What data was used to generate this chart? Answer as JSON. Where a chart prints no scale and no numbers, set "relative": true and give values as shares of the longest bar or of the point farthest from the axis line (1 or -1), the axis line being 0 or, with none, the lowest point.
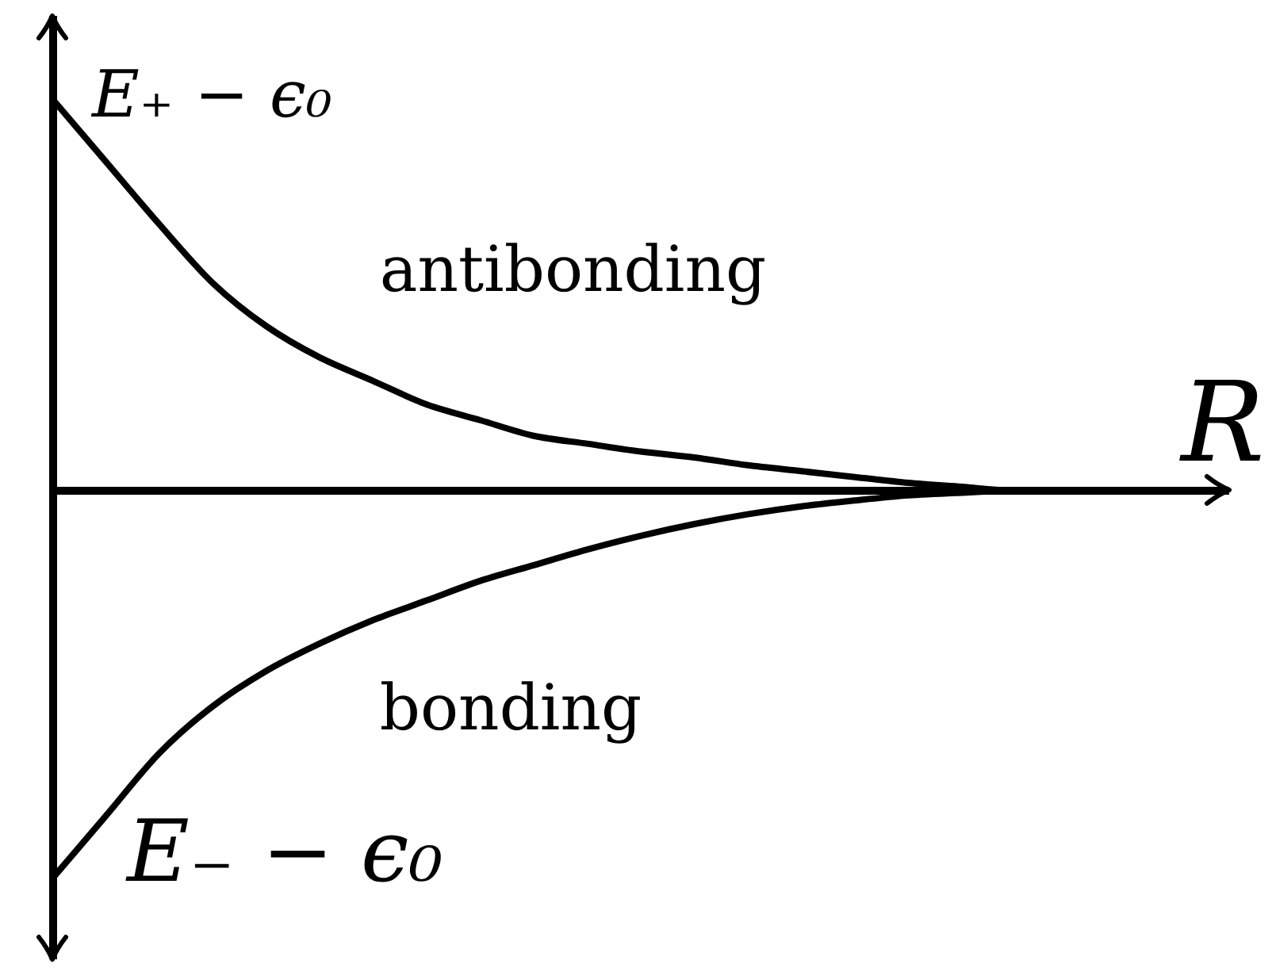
{
  "chart_data": {
    "type": "line",
    "relative": true,
    "xlabel": "R",
    "marker": "none",
    "categories": [
      null,
      null,
      null,
      null,
      null,
      null,
      null,
      null,
      null,
      null,
      null,
      null,
      null,
      null,
      null,
      null,
      null,
      null,
      null,
      null,
      null,
      null,
      null
    ],
    "series": [
      {
        "name": "antibonding",
        "color": "#000000",
        "values": [
          1.0,
          0.84,
          0.68,
          0.53,
          0.42,
          0.34,
          0.28,
          0.22,
          0.18,
          0.14,
          0.12,
          0.1,
          0.085,
          0.065,
          0.05,
          0.035,
          0.02,
          0.01,
          0,
          0,
          0,
          null,
          null
        ]
      },
      {
        "name": "bonding",
        "color": "#000000",
        "values": [
          -0.99,
          -0.83,
          -0.67,
          -0.55,
          -0.46,
          -0.39,
          -0.33,
          -0.28,
          -0.23,
          -0.19,
          -0.15,
          -0.115,
          -0.085,
          -0.06,
          -0.04,
          -0.025,
          -0.012,
          -0.005,
          0,
          0,
          0,
          null,
          null
        ]
      }
    ],
    "annotations": [
      "E₊ − ϵ₀",
      "E₋ − ϵ₀"
    ]
  }
}
